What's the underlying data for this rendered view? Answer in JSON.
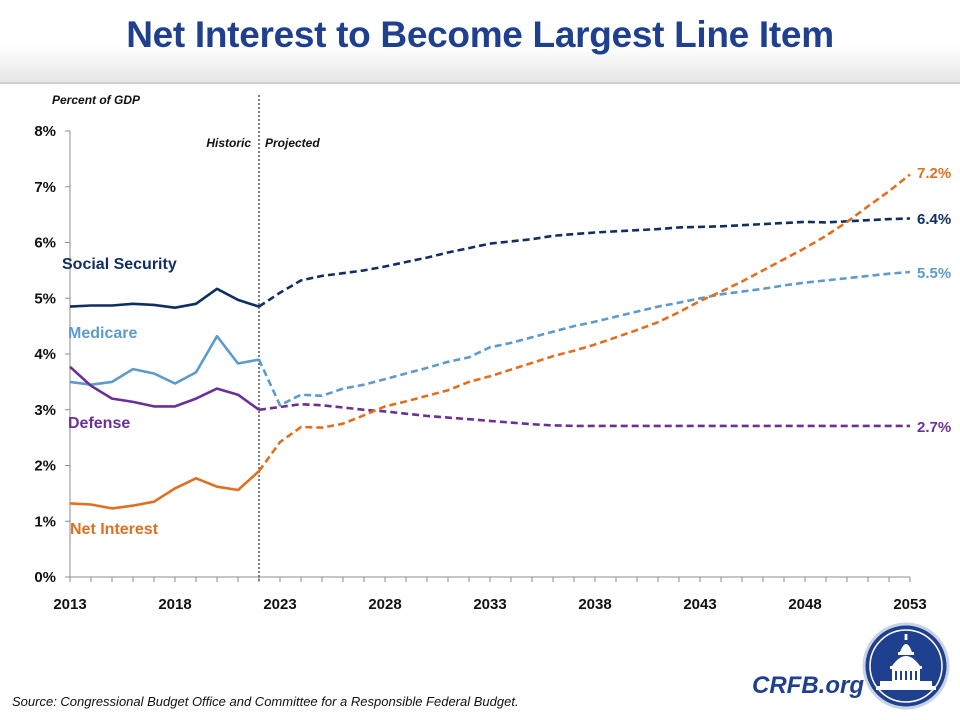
{
  "header": {
    "title": "Net Interest to Become Largest Line Item"
  },
  "footer": {
    "source": "Source: Congressional Budget Office and Committee for a Responsible Federal Budget.",
    "brand": "CRFB.org"
  },
  "colors": {
    "social_security": "#0f2f63",
    "medicare": "#5c9bcc",
    "defense": "#6b3096",
    "net_interest": "#e07020",
    "title": "#1f3f8f"
  },
  "chart_data": {
    "type": "line",
    "ylabel": "Percent of GDP",
    "ylim": [
      0,
      8
    ],
    "yticks": [
      "0%",
      "1%",
      "2%",
      "3%",
      "4%",
      "5%",
      "6%",
      "7%",
      "8%"
    ],
    "xlim": [
      2013,
      2053
    ],
    "xticks": [
      "2013",
      "2018",
      "2023",
      "2028",
      "2033",
      "2038",
      "2043",
      "2048",
      "2053"
    ],
    "grid": false,
    "divider": {
      "x": 2022,
      "left_label": "Historic",
      "right_label": "Projected"
    },
    "series": [
      {
        "name": "Social Security",
        "end_label": "6.4%",
        "historic": {
          "x": [
            2013,
            2014,
            2015,
            2016,
            2017,
            2018,
            2019,
            2020,
            2021,
            2022
          ],
          "y": [
            4.85,
            4.87,
            4.87,
            4.9,
            4.88,
            4.83,
            4.9,
            5.17,
            4.97,
            4.85
          ]
        },
        "projected": {
          "x": [
            2022,
            2023,
            2024,
            2025,
            2026,
            2027,
            2028,
            2029,
            2030,
            2031,
            2032,
            2033,
            2034,
            2035,
            2036,
            2037,
            2038,
            2039,
            2040,
            2041,
            2042,
            2043,
            2044,
            2045,
            2046,
            2047,
            2048,
            2049,
            2050,
            2051,
            2052,
            2053
          ],
          "y": [
            4.85,
            5.1,
            5.32,
            5.4,
            5.45,
            5.5,
            5.57,
            5.65,
            5.73,
            5.82,
            5.9,
            5.98,
            6.02,
            6.06,
            6.12,
            6.15,
            6.18,
            6.2,
            6.22,
            6.24,
            6.27,
            6.28,
            6.29,
            6.31,
            6.33,
            6.35,
            6.37,
            6.36,
            6.38,
            6.4,
            6.42,
            6.43
          ]
        }
      },
      {
        "name": "Medicare",
        "end_label": "5.5%",
        "historic": {
          "x": [
            2013,
            2014,
            2015,
            2016,
            2017,
            2018,
            2019,
            2020,
            2021,
            2022
          ],
          "y": [
            3.5,
            3.45,
            3.5,
            3.73,
            3.65,
            3.47,
            3.67,
            4.32,
            3.83,
            3.9
          ]
        },
        "projected": {
          "x": [
            2022,
            2023,
            2024,
            2025,
            2026,
            2027,
            2028,
            2029,
            2030,
            2031,
            2032,
            2033,
            2034,
            2035,
            2036,
            2037,
            2038,
            2039,
            2040,
            2041,
            2042,
            2043,
            2044,
            2045,
            2046,
            2047,
            2048,
            2049,
            2050,
            2051,
            2052,
            2053
          ],
          "y": [
            3.9,
            3.08,
            3.27,
            3.25,
            3.38,
            3.45,
            3.55,
            3.65,
            3.75,
            3.86,
            3.94,
            4.12,
            4.2,
            4.3,
            4.4,
            4.5,
            4.58,
            4.67,
            4.76,
            4.85,
            4.92,
            5.0,
            5.07,
            5.12,
            5.17,
            5.23,
            5.28,
            5.32,
            5.36,
            5.4,
            5.44,
            5.47
          ]
        }
      },
      {
        "name": "Defense",
        "end_label": "2.7%",
        "historic": {
          "x": [
            2013,
            2014,
            2015,
            2016,
            2017,
            2018,
            2019,
            2020,
            2021,
            2022
          ],
          "y": [
            3.77,
            3.43,
            3.2,
            3.14,
            3.06,
            3.06,
            3.2,
            3.38,
            3.27,
            3.0
          ]
        },
        "projected": {
          "x": [
            2022,
            2023,
            2024,
            2025,
            2026,
            2027,
            2028,
            2029,
            2030,
            2031,
            2032,
            2033,
            2034,
            2035,
            2036,
            2037,
            2038,
            2039,
            2040,
            2041,
            2042,
            2043,
            2044,
            2045,
            2046,
            2047,
            2048,
            2049,
            2050,
            2051,
            2052,
            2053
          ],
          "y": [
            3.0,
            3.05,
            3.1,
            3.08,
            3.04,
            3.0,
            2.97,
            2.93,
            2.89,
            2.86,
            2.83,
            2.8,
            2.77,
            2.74,
            2.72,
            2.71,
            2.71,
            2.71,
            2.71,
            2.71,
            2.71,
            2.71,
            2.71,
            2.71,
            2.71,
            2.71,
            2.71,
            2.71,
            2.71,
            2.71,
            2.71,
            2.71
          ]
        }
      },
      {
        "name": "Net Interest",
        "end_label": "7.2%",
        "historic": {
          "x": [
            2013,
            2014,
            2015,
            2016,
            2017,
            2018,
            2019,
            2020,
            2021,
            2022
          ],
          "y": [
            1.32,
            1.3,
            1.23,
            1.28,
            1.35,
            1.59,
            1.77,
            1.62,
            1.56,
            1.9
          ]
        },
        "projected": {
          "x": [
            2022,
            2023,
            2024,
            2025,
            2026,
            2027,
            2028,
            2029,
            2030,
            2031,
            2032,
            2033,
            2034,
            2035,
            2036,
            2037,
            2038,
            2039,
            2040,
            2041,
            2042,
            2043,
            2044,
            2045,
            2046,
            2047,
            2048,
            2049,
            2050,
            2051,
            2052,
            2053
          ],
          "y": [
            1.9,
            2.42,
            2.69,
            2.68,
            2.75,
            2.9,
            3.06,
            3.15,
            3.25,
            3.35,
            3.5,
            3.6,
            3.72,
            3.84,
            3.96,
            4.06,
            4.17,
            4.3,
            4.43,
            4.57,
            4.75,
            4.95,
            5.12,
            5.3,
            5.5,
            5.7,
            5.9,
            6.12,
            6.37,
            6.65,
            6.92,
            7.22
          ]
        }
      }
    ]
  }
}
